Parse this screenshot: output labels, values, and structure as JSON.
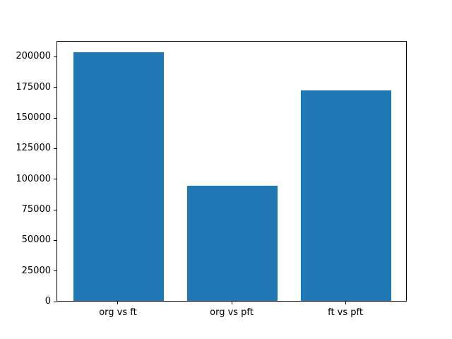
{
  "chart_data": {
    "type": "bar",
    "title": "",
    "xlabel": "",
    "ylabel": "",
    "categories": [
      "org vs ft",
      "org vs pft",
      "ft vs pft"
    ],
    "values": [
      203000,
      94000,
      172000
    ],
    "yticks": [
      0,
      25000,
      50000,
      75000,
      100000,
      125000,
      150000,
      175000,
      200000
    ],
    "ylim": [
      0,
      212900
    ],
    "bar_width_fraction": 0.8,
    "xlim": [
      -0.54,
      2.54
    ],
    "grid": false,
    "legend": null,
    "bar_color": "#1f77b4"
  },
  "colors": {
    "background": "#ffffff",
    "bar": "#1f77b4",
    "axis": "#000000",
    "text": "#000000"
  }
}
